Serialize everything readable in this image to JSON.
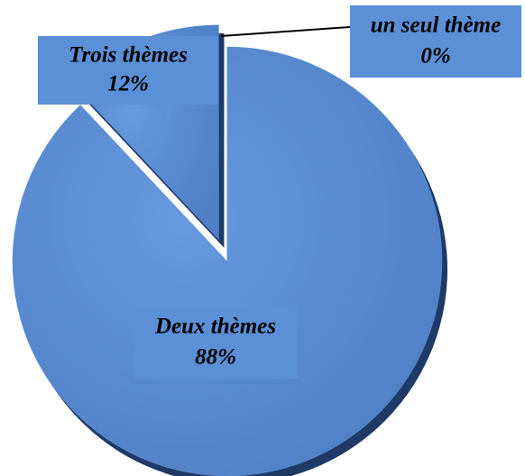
{
  "chart_data": {
    "type": "pie",
    "categories": [
      "un seul thème",
      "Deux thèmes",
      "Trois thèmes"
    ],
    "values": [
      0,
      88,
      12
    ],
    "value_labels": [
      "0%",
      "88%",
      "12%"
    ],
    "color": "#5b8fd6"
  }
}
